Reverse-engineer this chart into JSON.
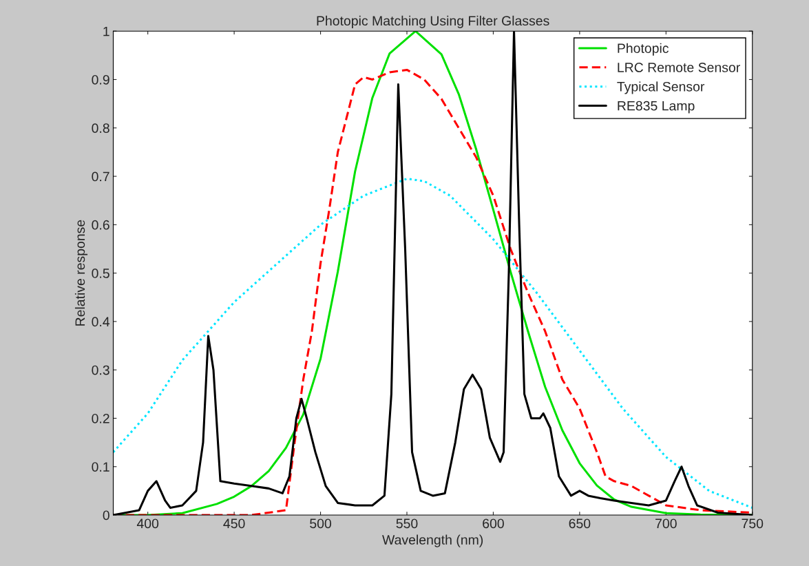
{
  "chart_data": {
    "type": "line",
    "title": "Photopic Matching Using Filter Glasses",
    "xlabel": "Wavelength (nm)",
    "ylabel": "Relative response",
    "xlim": [
      380,
      750
    ],
    "xticks": [
      400,
      450,
      500,
      550,
      600,
      650,
      700,
      750
    ],
    "ylim": [
      0,
      1
    ],
    "yticks": [
      0,
      0.1,
      0.2,
      0.3,
      0.4,
      0.5,
      0.6,
      0.7,
      0.8,
      0.9,
      1
    ],
    "grid": false,
    "legend": "top right",
    "series": [
      {
        "name": "Photopic",
        "color": "#00e000",
        "line_style": "solid",
        "x": [
          380,
          400,
          420,
          440,
          450,
          460,
          470,
          480,
          490,
          500,
          510,
          520,
          530,
          540,
          555,
          570,
          580,
          590,
          600,
          610,
          620,
          630,
          640,
          650,
          660,
          670,
          680,
          700,
          720,
          750
        ],
        "values": [
          0,
          0,
          0.004,
          0.023,
          0.038,
          0.06,
          0.091,
          0.139,
          0.208,
          0.323,
          0.503,
          0.71,
          0.862,
          0.954,
          1.0,
          0.952,
          0.87,
          0.757,
          0.631,
          0.503,
          0.381,
          0.265,
          0.175,
          0.107,
          0.061,
          0.032,
          0.017,
          0.004,
          0.001,
          0
        ]
      },
      {
        "name": "LRC Remote Sensor",
        "color": "#ff0000",
        "line_style": "dashed",
        "x": [
          380,
          420,
          460,
          480,
          485,
          490,
          495,
          500,
          505,
          510,
          515,
          520,
          525,
          530,
          540,
          550,
          560,
          570,
          580,
          590,
          600,
          610,
          620,
          630,
          640,
          650,
          660,
          665,
          670,
          680,
          690,
          700,
          720,
          750
        ],
        "values": [
          0,
          0,
          0,
          0.01,
          0.15,
          0.28,
          0.38,
          0.52,
          0.63,
          0.75,
          0.82,
          0.89,
          0.905,
          0.9,
          0.915,
          0.92,
          0.9,
          0.86,
          0.8,
          0.74,
          0.66,
          0.55,
          0.46,
          0.38,
          0.28,
          0.22,
          0.13,
          0.08,
          0.07,
          0.06,
          0.04,
          0.02,
          0.01,
          0.005
        ]
      },
      {
        "name": "Typical Sensor",
        "color": "#00e5ff",
        "line_style": "dotted",
        "x": [
          380,
          400,
          420,
          435,
          450,
          475,
          500,
          525,
          550,
          560,
          575,
          600,
          625,
          650,
          675,
          700,
          725,
          750
        ],
        "values": [
          0.13,
          0.21,
          0.32,
          0.38,
          0.44,
          0.52,
          0.6,
          0.66,
          0.695,
          0.69,
          0.66,
          0.57,
          0.46,
          0.34,
          0.22,
          0.12,
          0.05,
          0.015
        ]
      },
      {
        "name": "RE835 Lamp",
        "color": "#000000",
        "line_style": "solid",
        "x": [
          380,
          395,
          400,
          405,
          410,
          413,
          420,
          428,
          432,
          435,
          438,
          442,
          450,
          460,
          470,
          478,
          482,
          486,
          489,
          492,
          497,
          503,
          510,
          520,
          530,
          537,
          541,
          545,
          549,
          553,
          558,
          565,
          572,
          578,
          583,
          588,
          593,
          598,
          604,
          606,
          609,
          612,
          615,
          618,
          622,
          627,
          629,
          633,
          638,
          645,
          650,
          655,
          662,
          670,
          680,
          690,
          700,
          705,
          709,
          713,
          718,
          730,
          750
        ],
        "values": [
          0,
          0.01,
          0.05,
          0.07,
          0.03,
          0.015,
          0.02,
          0.05,
          0.15,
          0.37,
          0.3,
          0.07,
          0.065,
          0.06,
          0.055,
          0.045,
          0.08,
          0.2,
          0.24,
          0.2,
          0.13,
          0.06,
          0.025,
          0.02,
          0.02,
          0.04,
          0.25,
          0.89,
          0.55,
          0.13,
          0.05,
          0.04,
          0.045,
          0.15,
          0.26,
          0.29,
          0.26,
          0.16,
          0.11,
          0.13,
          0.5,
          1.0,
          0.6,
          0.25,
          0.2,
          0.2,
          0.21,
          0.18,
          0.08,
          0.04,
          0.05,
          0.04,
          0.035,
          0.03,
          0.025,
          0.02,
          0.03,
          0.07,
          0.1,
          0.06,
          0.02,
          0.005,
          0
        ]
      }
    ]
  }
}
